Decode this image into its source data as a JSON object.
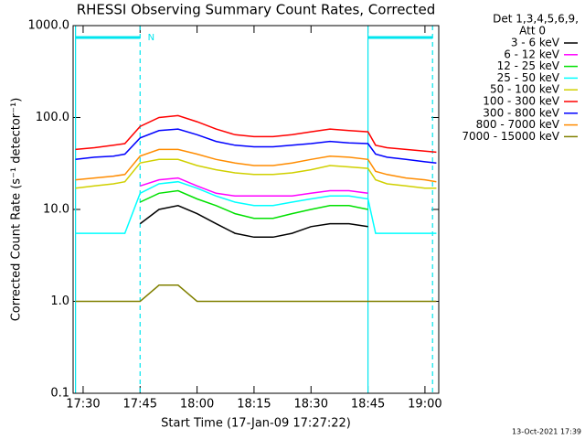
{
  "chart_data": {
    "type": "line",
    "title": "RHESSI Observing Summary Count Rates, Corrected",
    "xlabel": "Start Time (17-Jan-09 17:27:22)",
    "ylabel": "Corrected Count Rate (s⁻¹ detector⁻¹)",
    "legend_title": [
      "Det 1,3,4,5,6,9,",
      "Att 0"
    ],
    "footer": "13-Oct-2021 17:39",
    "log_y": true,
    "xlim": [
      "17:27:22",
      "19:03:38"
    ],
    "xticks": [
      "17:30",
      "17:45",
      "18:00",
      "18:15",
      "18:30",
      "18:45",
      "19:00"
    ],
    "ylim": [
      0.1,
      1000
    ],
    "yticks": [
      0.1,
      {
        "value": 1,
        "label": "1.0"
      },
      {
        "value": 10,
        "label": "10.0"
      },
      {
        "value": 100,
        "label": "100.0"
      },
      {
        "value": 1000,
        "label": "1000.0"
      }
    ],
    "markers": {
      "color": "#00e5ee",
      "label": "N",
      "label_x": "17:47",
      "bars": [
        [
          "17:28",
          "17:45"
        ],
        [
          "18:45",
          "19:02"
        ]
      ],
      "lines": [
        {
          "x": "17:28",
          "dashed": false
        },
        {
          "x": "17:45",
          "dashed": true
        },
        {
          "x": "18:45",
          "dashed": false
        },
        {
          "x": "19:02",
          "dashed": true
        }
      ]
    },
    "x": [
      "17:28",
      "17:33",
      "17:38",
      "17:41",
      "17:45",
      "17:50",
      "17:55",
      "18:00",
      "18:05",
      "18:10",
      "18:15",
      "18:20",
      "18:25",
      "18:30",
      "18:35",
      "18:40",
      "18:45",
      "18:47",
      "18:50",
      "18:55",
      "19:00",
      "19:03"
    ],
    "series": [
      {
        "name": "3 - 6 keV",
        "color": "#000000",
        "values": [
          null,
          null,
          null,
          null,
          7,
          10,
          11,
          9,
          7,
          5.5,
          5,
          5,
          5.5,
          6.5,
          7,
          7,
          6.5,
          null,
          null,
          null,
          null,
          null
        ]
      },
      {
        "name": "6 - 12 keV",
        "color": "#ff00ff",
        "values": [
          null,
          null,
          null,
          null,
          18,
          21,
          22,
          18,
          15,
          14,
          14,
          14,
          14,
          15,
          16,
          16,
          15,
          null,
          null,
          null,
          null,
          null
        ]
      },
      {
        "name": "12 - 25 keV",
        "color": "#00e000",
        "values": [
          null,
          null,
          null,
          null,
          12,
          15,
          16,
          13,
          11,
          9,
          8,
          8,
          9,
          10,
          11,
          11,
          10,
          null,
          null,
          null,
          null,
          null
        ]
      },
      {
        "name": "25 - 50 keV",
        "color": "#00ffff",
        "values": [
          5.5,
          5.5,
          5.5,
          5.5,
          15,
          19,
          20,
          17,
          14,
          12,
          11,
          11,
          12,
          13,
          14,
          14,
          13,
          5.5,
          5.5,
          5.5,
          5.5,
          5.5
        ]
      },
      {
        "name": "50 - 100 keV",
        "color": "#d0d000",
        "values": [
          17,
          18,
          19,
          20,
          32,
          35,
          35,
          30,
          27,
          25,
          24,
          24,
          25,
          27,
          30,
          29,
          28,
          21,
          19,
          18,
          17,
          17
        ]
      },
      {
        "name": "100 - 300 keV",
        "color": "#ff0000",
        "values": [
          45,
          47,
          50,
          52,
          80,
          100,
          105,
          90,
          75,
          65,
          62,
          62,
          65,
          70,
          75,
          72,
          70,
          50,
          47,
          45,
          43,
          42
        ]
      },
      {
        "name": "300 - 800 keV",
        "color": "#0000ff",
        "values": [
          35,
          37,
          38,
          40,
          60,
          72,
          75,
          65,
          55,
          50,
          48,
          48,
          50,
          52,
          55,
          53,
          52,
          40,
          37,
          35,
          33,
          32
        ]
      },
      {
        "name": "800 - 7000 keV",
        "color": "#ff8c00",
        "values": [
          21,
          22,
          23,
          24,
          38,
          45,
          45,
          40,
          35,
          32,
          30,
          30,
          32,
          35,
          38,
          37,
          35,
          26,
          24,
          22,
          21,
          20
        ]
      },
      {
        "name": "7000 - 15000 keV",
        "color": "#808000",
        "values": [
          1,
          1,
          1,
          1,
          1,
          1.5,
          1.5,
          1,
          1,
          1,
          1,
          1,
          1,
          1,
          1,
          1,
          1,
          1,
          1,
          1,
          1,
          1
        ]
      }
    ]
  }
}
